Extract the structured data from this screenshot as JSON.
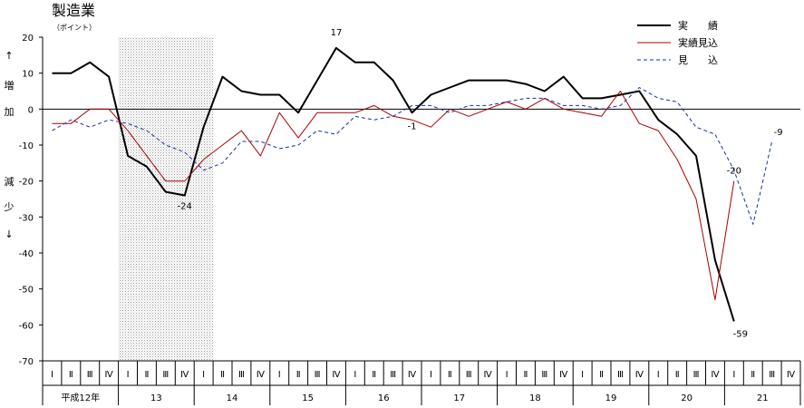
{
  "chart_data": {
    "type": "line",
    "title": "製造業",
    "unit_label": "（ポイント）",
    "y_side_labels": [
      "↑",
      "増",
      "加",
      "減",
      "少",
      "↓"
    ],
    "ylim": [
      -70,
      20
    ],
    "yticks": [
      20,
      10,
      0,
      -10,
      -20,
      -30,
      -40,
      -50,
      -60,
      -70
    ],
    "quarter_labels": [
      "Ⅰ",
      "Ⅱ",
      "Ⅲ",
      "Ⅳ"
    ],
    "quarter_count": 40,
    "x_start": "平成12年 Ⅰ",
    "years": [
      {
        "label": "平成12年",
        "start": 0,
        "quarters": 4
      },
      {
        "label": "13",
        "start": 4,
        "quarters": 4
      },
      {
        "label": "14",
        "start": 8,
        "quarters": 4
      },
      {
        "label": "15",
        "start": 12,
        "quarters": 4
      },
      {
        "label": "16",
        "start": 16,
        "quarters": 4
      },
      {
        "label": "17",
        "start": 20,
        "quarters": 4
      },
      {
        "label": "18",
        "start": 24,
        "quarters": 4
      },
      {
        "label": "19",
        "start": 28,
        "quarters": 4
      },
      {
        "label": "20",
        "start": 32,
        "quarters": 4
      },
      {
        "label": "21",
        "start": 36,
        "quarters": 4
      }
    ],
    "shaded_range": [
      "平成13年 Ⅰ",
      "平成14年 Ⅰ"
    ],
    "zero_line": true,
    "series": [
      {
        "name": "実　　績",
        "color": "#000000",
        "style": "solid-bold",
        "values": [
          10,
          10,
          13,
          9,
          -13,
          -16,
          -23,
          -24,
          -5,
          9,
          5,
          4,
          4,
          -1,
          8,
          17,
          13,
          13,
          8,
          -1,
          4,
          6,
          8,
          8,
          8,
          7,
          5,
          9,
          3,
          3,
          4,
          5,
          -3,
          -7,
          -13,
          -42,
          -59
        ]
      },
      {
        "name": "実績見込",
        "color": "#aa0000",
        "style": "solid-thin",
        "values": [
          -4,
          -4,
          0,
          0,
          -6,
          -13,
          -20,
          -20,
          -14,
          -10,
          -6,
          -13,
          -1,
          -8,
          -1,
          -1,
          -1,
          1,
          -2,
          -3,
          -5,
          0,
          -2,
          0,
          2,
          0,
          3,
          0,
          -1,
          -2,
          5,
          -4,
          -6,
          -14,
          -25,
          -53,
          -20
        ]
      },
      {
        "name": "見　　込",
        "color": "#1a2ca8",
        "style": "dashed",
        "values": [
          -6,
          -3,
          -5,
          -3,
          -4,
          -6,
          -10,
          -12,
          -17,
          -15,
          -9,
          -9,
          -11,
          -10,
          -6,
          -7,
          -2,
          -3,
          -2,
          1,
          1,
          -1,
          1,
          1,
          2,
          3,
          3,
          1,
          1,
          0,
          1,
          6,
          3,
          2,
          -5,
          -7,
          -17,
          -32,
          -9
        ]
      }
    ],
    "annotations": [
      {
        "text": "17",
        "series": "実　　績",
        "x": "平成15年 Ⅳ",
        "y": 17
      },
      {
        "text": "-24",
        "series": "実　　績",
        "x": "平成13年 Ⅳ",
        "y": -24
      },
      {
        "text": "-1",
        "series": "実　　績",
        "x": "平成16年 Ⅳ",
        "y": -1
      },
      {
        "text": "-59",
        "series": "実　　績",
        "x": "平成21年 Ⅰ",
        "y": -59
      },
      {
        "text": "-20",
        "series": "実績見込",
        "x": "平成21年 Ⅰ",
        "y": -20
      },
      {
        "text": "-9",
        "series": "見　　込",
        "x": "平成21年 Ⅲ",
        "y": -9
      }
    ],
    "legend": "top-right",
    "grid": false
  }
}
